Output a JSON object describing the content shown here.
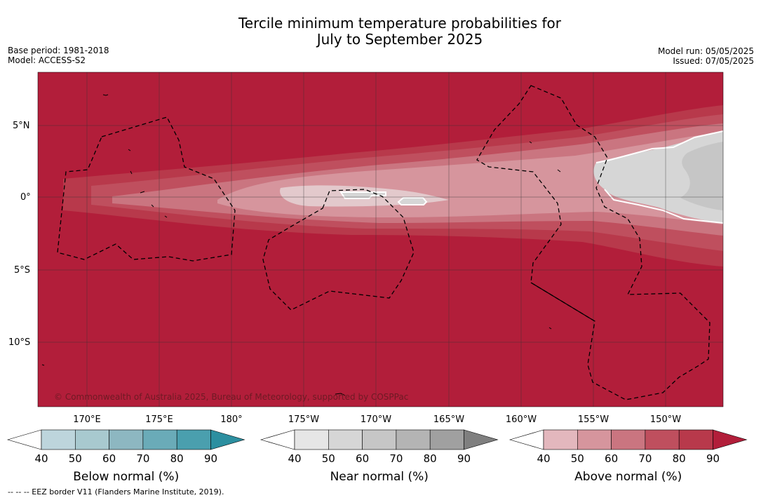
{
  "title": {
    "line1": "Tercile minimum temperature probabilities for",
    "line2": "July to September 2025"
  },
  "meta": {
    "base_period": "Base period: 1981-2018",
    "model": "Model: ACCESS-S2",
    "model_run": "Model run: 05/05/2025",
    "issued": "Issued: 07/05/2025"
  },
  "map": {
    "lat_labels": [
      "5°N",
      "0°",
      "5°S",
      "10°S"
    ],
    "lon_labels": [
      "170°E",
      "175°E",
      "180°",
      "175°W",
      "170°W",
      "165°W",
      "160°W",
      "155°W",
      "150°W"
    ],
    "copyright": "© Commonwealth of Australia 2025, Bureau of Meteorology, supported by COSPPac"
  },
  "colorbars": [
    {
      "title": "Below normal (%)",
      "ticks": [
        "40",
        "50",
        "60",
        "70",
        "80",
        "90"
      ],
      "colors": [
        "#ffffff",
        "#bdd5dc",
        "#a8c9cf",
        "#8db7c1",
        "#6aabb8",
        "#4a9fae",
        "#2c8fa0"
      ]
    },
    {
      "title": "Near normal (%)",
      "ticks": [
        "40",
        "50",
        "60",
        "70",
        "80",
        "90"
      ],
      "colors": [
        "#ffffff",
        "#e6e6e6",
        "#d6d6d6",
        "#c6c6c6",
        "#b4b4b4",
        "#a0a0a0",
        "#7f7f7f"
      ]
    },
    {
      "title": "Above normal (%)",
      "ticks": [
        "40",
        "50",
        "60",
        "70",
        "80",
        "90"
      ],
      "colors": [
        "#ffffff",
        "#e3b7bd",
        "#d6959d",
        "#ca7580",
        "#bf4f5e",
        "#b8394b",
        "#b21e3a"
      ]
    }
  ],
  "footnote": "-- -- -- EEZ border V11 (Flanders Marine Institute, 2019)."
}
